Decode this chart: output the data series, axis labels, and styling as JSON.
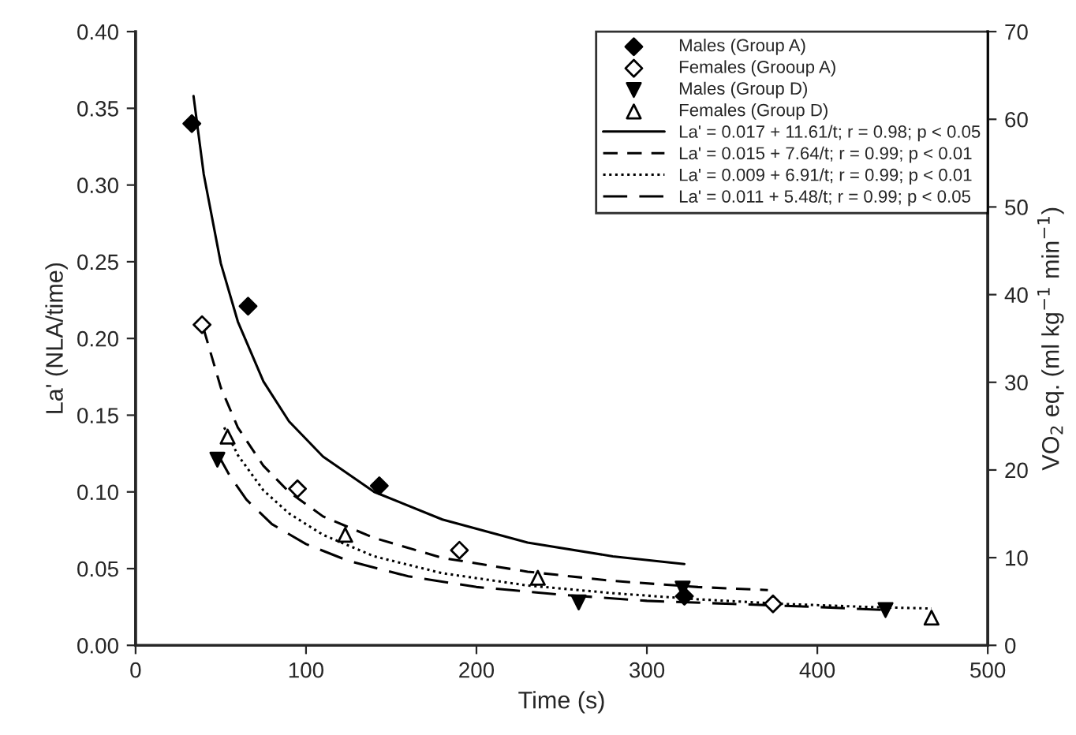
{
  "chart_data": {
    "type": "scatter",
    "xlabel": "Time (s)",
    "ylabel": "La' (NLA/time)",
    "y2label": "VO$_{2}$ eq. (ml kg$^{−1}$ min$^{−1}$)",
    "xlim": [
      0,
      500
    ],
    "xticks": [
      0,
      100,
      200,
      300,
      400,
      500
    ],
    "ylim": [
      0,
      0.4
    ],
    "yticks": [
      {
        "value": 0,
        "label": "0.00"
      },
      {
        "value": 0.05,
        "label": "0.05"
      },
      {
        "value": 0.1,
        "label": "0.10"
      },
      {
        "value": 0.15,
        "label": "0.15"
      },
      {
        "value": 0.2,
        "label": "0.20"
      },
      {
        "value": 0.25,
        "label": "0.25"
      },
      {
        "value": 0.3,
        "label": "0.30"
      },
      {
        "value": 0.35,
        "label": "0.35"
      },
      {
        "value": 0.4,
        "label": "0.40"
      }
    ],
    "y2lim": [
      0,
      70
    ],
    "y2ticks": [
      0,
      10,
      20,
      30,
      40,
      50,
      60,
      70
    ],
    "grid": false,
    "legend": "top right",
    "series": [
      {
        "name": "Males (Group A)",
        "marker": "diamond",
        "color": "#000000",
        "x": [
          33,
          66,
          143,
          322
        ],
        "values": [
          0.34,
          0.221,
          0.104,
          0.032
        ]
      },
      {
        "name": "Females (Grooup A)",
        "marker": "diamond",
        "color": "#ffffff",
        "x": [
          39,
          95,
          190,
          374
        ],
        "values": [
          0.209,
          0.102,
          0.062,
          0.027
        ]
      },
      {
        "name": "Males (Group D)",
        "marker": "triangle_down",
        "color": "#000000",
        "x": [
          48,
          260,
          321,
          440
        ],
        "values": [
          0.121,
          0.028,
          0.037,
          0.023
        ]
      },
      {
        "name": "Females (Group D)",
        "marker": "triangle",
        "color": "#ffffff",
        "x": [
          54,
          123,
          236,
          467
        ],
        "values": [
          0.136,
          0.072,
          0.044,
          0.018
        ]
      },
      {
        "name": "La' = 0.017 + 11.61/t; r = 0.98; p < 0.05",
        "type": "line",
        "line_style": "solid",
        "color": "#000000",
        "x": [
          34,
          40,
          50,
          60,
          75,
          90,
          110,
          140,
          180,
          230,
          280,
          322
        ],
        "values": [
          0.358,
          0.307,
          0.249,
          0.211,
          0.172,
          0.146,
          0.123,
          0.1,
          0.082,
          0.067,
          0.058,
          0.053
        ]
      },
      {
        "name": "La' = 0.015 + 7.64/t; r = 0.99; p < 0.01",
        "type": "line",
        "line_style": "dashed",
        "color": "#000000",
        "x": [
          40,
          50,
          60,
          75,
          90,
          110,
          140,
          180,
          230,
          280,
          330,
          371
        ],
        "values": [
          0.206,
          0.168,
          0.142,
          0.117,
          0.1,
          0.084,
          0.07,
          0.057,
          0.048,
          0.042,
          0.038,
          0.036
        ]
      },
      {
        "name": "La' = 0.009 + 6.91/t; r = 0.99; p < 0.01",
        "type": "line",
        "line_style": "dotted",
        "color": "#000000",
        "x": [
          52,
          60,
          75,
          90,
          110,
          140,
          180,
          230,
          280,
          330,
          380,
          430,
          467
        ],
        "values": [
          0.142,
          0.124,
          0.101,
          0.086,
          0.072,
          0.058,
          0.047,
          0.039,
          0.034,
          0.03,
          0.027,
          0.025,
          0.024
        ]
      },
      {
        "name": "La' = 0.011 + 5.48/t; r = 0.99; p < 0.05",
        "type": "line",
        "line_style": "longdash",
        "color": "#000000",
        "x": [
          48,
          55,
          65,
          80,
          100,
          125,
          160,
          200,
          250,
          300,
          350,
          400,
          440
        ],
        "values": [
          0.125,
          0.111,
          0.095,
          0.079,
          0.066,
          0.055,
          0.045,
          0.038,
          0.033,
          0.029,
          0.027,
          0.025,
          0.023
        ]
      }
    ]
  }
}
